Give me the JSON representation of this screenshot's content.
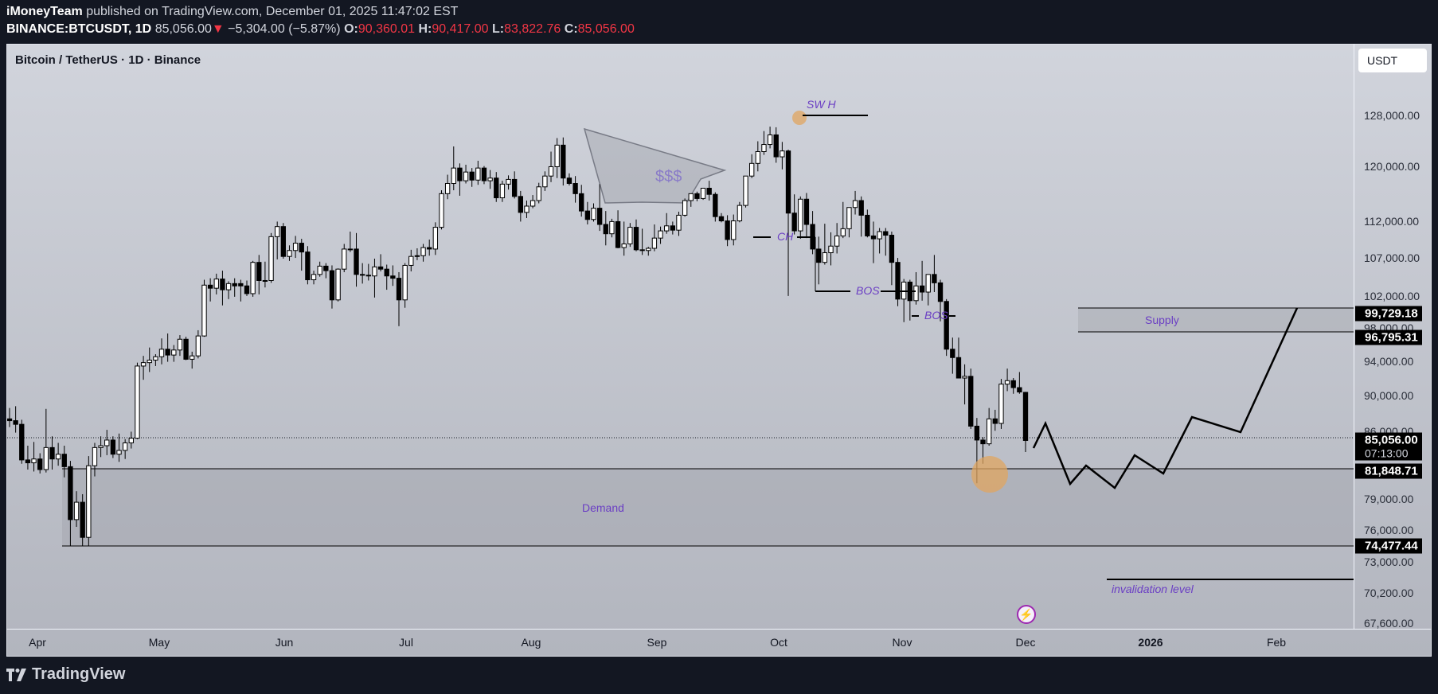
{
  "header": {
    "author": "iMoneyTeam",
    "published_text": "published on TradingView.com, December 01, 2025 11:47:02 EST",
    "symbol": "BINANCE:BTCUSDT, 1D",
    "last_price": "85,056.00",
    "change_arrow": "▼",
    "change": "−5,304.00 (−5.87%)",
    "open_label": "O:",
    "open": "90,360.01",
    "high_label": "H:",
    "high": "90,417.00",
    "low_label": "L:",
    "low": "83,822.76",
    "close_label": "C:",
    "close": "85,056.00"
  },
  "chart": {
    "title": "Bitcoin / TetherUS · 1D · Binance",
    "currency_button": "USDT",
    "colors": {
      "background_top": "#d1d4dc",
      "background_bottom": "#b2b5be",
      "candle": "#000000",
      "annotation_text": "#6b3fc4",
      "highlight_circle": "#e0a660",
      "zone_fill": "#a6a8b0"
    }
  },
  "price_axis": {
    "labels": [
      "128,000.00",
      "120,000.00",
      "112,000.00",
      "107,000.00",
      "102,000.00",
      "98,000.00",
      "94,000.00",
      "90,000.00",
      "86,000.00",
      "79,000.00",
      "76,000.00",
      "73,000.00",
      "70,200.00",
      "67,600.00"
    ],
    "tags": [
      {
        "value": "99,729.18"
      },
      {
        "value": "96,795.31"
      },
      {
        "value": "85,056.00",
        "sub": "07:13:00"
      },
      {
        "value": "81,848.71"
      },
      {
        "value": "74,477.44"
      }
    ]
  },
  "time_axis": {
    "labels": [
      {
        "text": "Apr",
        "bold": false
      },
      {
        "text": "May",
        "bold": false
      },
      {
        "text": "Jun",
        "bold": false
      },
      {
        "text": "Jul",
        "bold": false
      },
      {
        "text": "Aug",
        "bold": false
      },
      {
        "text": "Sep",
        "bold": false
      },
      {
        "text": "Oct",
        "bold": false
      },
      {
        "text": "Nov",
        "bold": false
      },
      {
        "text": "Dec",
        "bold": false
      },
      {
        "text": "2026",
        "bold": true
      },
      {
        "text": "Feb",
        "bold": false
      }
    ]
  },
  "annotations": {
    "sw_h": "SW H",
    "liquidity": "$$$",
    "ch": "CH",
    "bos_1": "BOS",
    "bos_2": "BOS",
    "supply": "Supply",
    "demand": "Demand",
    "invalidation": "invalidation level"
  },
  "footer": {
    "brand": "TradingView"
  },
  "chart_data": {
    "type": "candlestick",
    "title": "Bitcoin / TetherUS · 1D · Binance",
    "symbol": "BINANCE:BTCUSDT",
    "interval": "1D",
    "xlabel": "",
    "ylabel": "USDT",
    "y_scale": "log",
    "ylim": [
      67600,
      128000
    ],
    "x_ticks": [
      "Apr",
      "May",
      "Jun",
      "Jul",
      "Aug",
      "Sep",
      "Oct",
      "Nov",
      "Dec",
      "2026",
      "Feb"
    ],
    "last": {
      "open": 90360.01,
      "high": 90417.0,
      "low": 83822.76,
      "close": 85056.0,
      "change": -5304.0,
      "change_pct": -5.87
    },
    "zones": [
      {
        "name": "Supply",
        "top": 99729.18,
        "bottom": 96795.31
      },
      {
        "name": "Demand",
        "top": 81848.71,
        "bottom": 74477.44
      }
    ],
    "levels": [
      {
        "name": "SW H",
        "price": 126200
      },
      {
        "name": "CH",
        "price": 108600
      },
      {
        "name": "BOS",
        "price": 102000
      },
      {
        "name": "BOS",
        "price": 98600
      },
      {
        "name": "invalidation level",
        "price": 71800
      }
    ],
    "projection_path": [
      [
        85056,
        "Dec 1"
      ],
      [
        86500,
        "Dec 4"
      ],
      [
        80500,
        "Dec 10"
      ],
      [
        82200,
        "Dec 14"
      ],
      [
        80000,
        "Dec 21"
      ],
      [
        83000,
        "Dec 26"
      ],
      [
        81300,
        "Jan 2"
      ],
      [
        87000,
        "Jan 9"
      ],
      [
        85500,
        "Jan 21"
      ],
      [
        99729,
        "Feb 1"
      ]
    ],
    "candles_ohlc": [
      [
        87400,
        88600,
        86500,
        87200
      ],
      [
        87200,
        88800,
        85900,
        86800
      ],
      [
        86800,
        87300,
        82600,
        83000
      ],
      [
        83000,
        84500,
        82000,
        82700
      ],
      [
        82700,
        84900,
        81800,
        83100
      ],
      [
        83100,
        83700,
        81600,
        82000
      ],
      [
        82000,
        88500,
        81700,
        84300
      ],
      [
        84300,
        85500,
        82000,
        83100
      ],
      [
        83100,
        84800,
        82400,
        83600
      ],
      [
        83600,
        84500,
        81200,
        82300
      ],
      [
        82300,
        82900,
        74500,
        77000
      ],
      [
        77000,
        79800,
        76300,
        78700
      ],
      [
        78700,
        79500,
        74500,
        75300
      ],
      [
        75300,
        83400,
        74500,
        82400
      ],
      [
        82400,
        84800,
        81300,
        84300
      ],
      [
        84300,
        85500,
        83300,
        84500
      ],
      [
        84500,
        86200,
        83500,
        85100
      ],
      [
        85100,
        85500,
        83200,
        83600
      ],
      [
        83600,
        85800,
        82800,
        84000
      ],
      [
        84000,
        85200,
        83100,
        84800
      ],
      [
        84800,
        86000,
        84200,
        85300
      ],
      [
        85300,
        93800,
        85200,
        93400
      ],
      [
        93400,
        94600,
        91800,
        93800
      ],
      [
        93800,
        95600,
        92700,
        94100
      ],
      [
        94100,
        94800,
        93400,
        94500
      ],
      [
        94500,
        96700,
        93600,
        95400
      ],
      [
        95400,
        97300,
        93900,
        94700
      ],
      [
        94700,
        95900,
        93900,
        95300
      ],
      [
        95300,
        97100,
        94600,
        96600
      ],
      [
        96600,
        96900,
        94100,
        94200
      ],
      [
        94200,
        95100,
        93100,
        94600
      ],
      [
        94600,
        97700,
        94300,
        97000
      ],
      [
        97000,
        104100,
        96900,
        103400
      ],
      [
        103400,
        104300,
        101300,
        103000
      ],
      [
        103000,
        104900,
        102200,
        104200
      ],
      [
        104200,
        105300,
        100800,
        102800
      ],
      [
        102800,
        103900,
        101600,
        103600
      ],
      [
        103600,
        104300,
        101900,
        103300
      ],
      [
        103600,
        104100,
        101300,
        103300
      ],
      [
        103300,
        104000,
        102000,
        102300
      ],
      [
        102300,
        106600,
        101900,
        106400
      ],
      [
        106400,
        107400,
        102200,
        104000
      ],
      [
        104000,
        106500,
        103100,
        104000
      ],
      [
        104000,
        110400,
        103700,
        109900
      ],
      [
        109900,
        112000,
        106800,
        111300
      ],
      [
        111300,
        111800,
        106900,
        107200
      ],
      [
        107200,
        108700,
        106600,
        108000
      ],
      [
        108000,
        110000,
        107000,
        109000
      ],
      [
        109000,
        109600,
        105300,
        107800
      ],
      [
        107800,
        108600,
        103500,
        104100
      ],
      [
        104100,
        105300,
        103500,
        104800
      ],
      [
        104800,
        106500,
        104500,
        105900
      ],
      [
        105900,
        106300,
        104300,
        105300
      ],
      [
        105300,
        106000,
        100400,
        101500
      ],
      [
        101500,
        105600,
        101300,
        105500
      ],
      [
        105500,
        108900,
        105100,
        108200
      ],
      [
        108200,
        110600,
        107800,
        108200
      ],
      [
        108200,
        110400,
        103200,
        104800
      ],
      [
        104800,
        106300,
        103600,
        104700
      ],
      [
        104700,
        106200,
        104000,
        104600
      ],
      [
        104600,
        106900,
        101800,
        105800
      ],
      [
        105800,
        107500,
        105200,
        105500
      ],
      [
        105500,
        106100,
        102800,
        104600
      ],
      [
        104600,
        106000,
        103300,
        104300
      ],
      [
        104300,
        105100,
        98200,
        101500
      ],
      [
        101500,
        106300,
        100500,
        106000
      ],
      [
        106000,
        108100,
        105200,
        107200
      ],
      [
        107200,
        108300,
        106700,
        107300
      ],
      [
        107300,
        108900,
        106500,
        108400
      ],
      [
        108400,
        109500,
        107300,
        108200
      ],
      [
        108200,
        111900,
        107400,
        111200
      ],
      [
        111200,
        116500,
        110900,
        116000
      ],
      [
        116000,
        118800,
        115200,
        117500
      ],
      [
        117500,
        123100,
        116500,
        119800
      ],
      [
        119800,
        120500,
        115700,
        117900
      ],
      [
        117900,
        120300,
        117500,
        119200
      ],
      [
        119200,
        119800,
        117000,
        118000
      ],
      [
        118000,
        120900,
        117300,
        119800
      ],
      [
        119800,
        120100,
        117400,
        117900
      ],
      [
        117900,
        119500,
        116700,
        118300
      ],
      [
        118300,
        119200,
        114800,
        115400
      ],
      [
        115400,
        117900,
        114800,
        117400
      ],
      [
        117400,
        118700,
        116600,
        118100
      ],
      [
        118100,
        119300,
        115300,
        115600
      ],
      [
        115600,
        116400,
        112000,
        113300
      ],
      [
        113300,
        115000,
        112500,
        114200
      ],
      [
        114200,
        115800,
        113900,
        115000
      ],
      [
        115000,
        117600,
        114600,
        117000
      ],
      [
        117000,
        119300,
        116400,
        118600
      ],
      [
        118600,
        122300,
        117700,
        120000
      ],
      [
        120000,
        124400,
        118300,
        123300
      ],
      [
        123300,
        124500,
        117200,
        118300
      ],
      [
        118300,
        119000,
        117200,
        117500
      ],
      [
        117500,
        118600,
        114700,
        116000
      ],
      [
        116000,
        117300,
        112700,
        113500
      ],
      [
        113500,
        114800,
        111600,
        112300
      ],
      [
        112300,
        114600,
        112000,
        113900
      ],
      [
        113900,
        117400,
        110700,
        111600
      ],
      [
        111600,
        113500,
        108700,
        110300
      ],
      [
        110300,
        112400,
        109800,
        112000
      ],
      [
        112000,
        113600,
        108300,
        108400
      ],
      [
        108400,
        112000,
        107300,
        108900
      ],
      [
        108900,
        111800,
        108500,
        111200
      ],
      [
        111200,
        112300,
        107900,
        108100
      ],
      [
        108100,
        111000,
        107400,
        108000
      ],
      [
        108000,
        108500,
        107300,
        108300
      ],
      [
        108300,
        111600,
        107900,
        109700
      ],
      [
        109700,
        111300,
        108900,
        110700
      ],
      [
        110700,
        113200,
        110300,
        111400
      ],
      [
        111400,
        112000,
        110200,
        110800
      ],
      [
        110800,
        113400,
        110000,
        112900
      ],
      [
        112900,
        115300,
        112700,
        115000
      ],
      [
        115000,
        115700,
        114100,
        116000
      ],
      [
        116000,
        116300,
        114900,
        115300
      ],
      [
        115300,
        116800,
        115100,
        116800
      ],
      [
        116800,
        117900,
        115000,
        115900
      ],
      [
        115900,
        116200,
        112000,
        112700
      ],
      [
        112700,
        113200,
        111900,
        112100
      ],
      [
        112100,
        112900,
        108600,
        109500
      ],
      [
        109500,
        113000,
        108700,
        112100
      ],
      [
        112100,
        114800,
        111900,
        114300
      ],
      [
        114300,
        118600,
        114000,
        118600
      ],
      [
        118600,
        121900,
        118300,
        120500
      ],
      [
        120500,
        123900,
        119300,
        122300
      ],
      [
        122300,
        125500,
        121800,
        123400
      ],
      [
        123400,
        126200,
        122800,
        124900
      ],
      [
        124900,
        126100,
        120600,
        121500
      ],
      [
        121500,
        123800,
        119600,
        122400
      ],
      [
        122400,
        122600,
        102000,
        113200
      ],
      [
        113200,
        115900,
        110200,
        110700
      ],
      [
        110700,
        115600,
        109600,
        115200
      ],
      [
        115200,
        116100,
        109700,
        111600
      ],
      [
        111600,
        113500,
        107500,
        108200
      ],
      [
        108200,
        109900,
        103500,
        106400
      ],
      [
        106400,
        111700,
        106100,
        107700
      ],
      [
        107700,
        110500,
        106000,
        108600
      ],
      [
        108600,
        111800,
        107600,
        110000
      ],
      [
        110000,
        114800,
        109700,
        111000
      ],
      [
        111000,
        114000,
        109800,
        114000
      ],
      [
        114000,
        116400,
        113000,
        115000
      ],
      [
        115000,
        115600,
        109900,
        112900
      ],
      [
        112900,
        113700,
        109800,
        110000
      ],
      [
        110000,
        112000,
        106300,
        109600
      ],
      [
        109600,
        111100,
        107600,
        110600
      ],
      [
        110600,
        111100,
        107300,
        110100
      ],
      [
        110100,
        110600,
        103400,
        106400
      ],
      [
        106400,
        107000,
        100700,
        101600
      ],
      [
        101600,
        104200,
        98700,
        103800
      ],
      [
        103800,
        104100,
        98900,
        101400
      ],
      [
        101400,
        105100,
        100900,
        103300
      ],
      [
        103300,
        106600,
        101400,
        102500
      ],
      [
        102500,
        104800,
        100800,
        104800
      ],
      [
        104800,
        107400,
        102500,
        103700
      ],
      [
        103700,
        104100,
        98800,
        101300
      ],
      [
        101300,
        101600,
        94600,
        95400
      ],
      [
        95400,
        96800,
        92500,
        94400
      ],
      [
        94400,
        96800,
        93500,
        92000
      ],
      [
        92000,
        93600,
        89000,
        92200
      ],
      [
        92200,
        93100,
        86300,
        86600
      ],
      [
        86600,
        87500,
        80600,
        85100
      ],
      [
        85100,
        85400,
        82600,
        84700
      ],
      [
        84700,
        88600,
        84500,
        87400
      ],
      [
        87400,
        88400,
        86100,
        86900
      ],
      [
        86900,
        91900,
        86300,
        91300
      ],
      [
        91300,
        93100,
        90500,
        91700
      ],
      [
        91700,
        92000,
        90200,
        90900
      ],
      [
        90900,
        92700,
        90200,
        90400
      ],
      [
        90360,
        90417,
        83823,
        85056
      ]
    ]
  }
}
